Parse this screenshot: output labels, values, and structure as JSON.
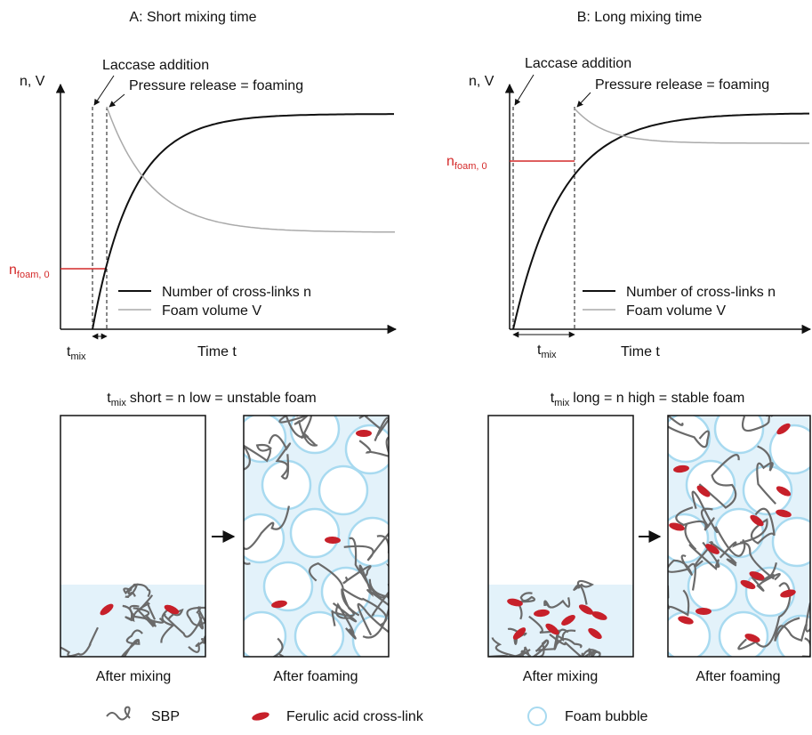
{
  "panels": [
    {
      "title": "A: Short mixing time",
      "y_axis": "n, V",
      "laccase": "Laccase addition",
      "pressure": "Pressure release = foaming",
      "n_foam": {
        "main": "n",
        "sub": "foam, 0"
      },
      "legend": [
        "Number of cross-links n",
        "Foam volume V"
      ],
      "t_mix": {
        "main": "t",
        "sub": "mix"
      },
      "x_axis": "Time t",
      "caption": {
        "main": "t",
        "sub": "mix",
        "rest": "short = n low = unstable foam"
      },
      "boxes": [
        "After mixing",
        "After foaming"
      ]
    },
    {
      "title": "B: Long mixing time",
      "y_axis": "n, V",
      "laccase": "Laccase addition",
      "pressure": "Pressure release = foaming",
      "n_foam": {
        "main": "n",
        "sub": "foam, 0"
      },
      "legend": [
        "Number of cross-links n",
        "Foam volume V"
      ],
      "t_mix": {
        "main": "t",
        "sub": "mix"
      },
      "x_axis": "Time t",
      "caption": {
        "main": "t",
        "sub": "mix",
        "rest": "long = n high = stable foam"
      },
      "boxes": [
        "After mixing",
        "After foaming"
      ]
    }
  ],
  "legend": [
    "SBP",
    "Ferulic acid cross-link",
    "Foam bubble"
  ]
}
